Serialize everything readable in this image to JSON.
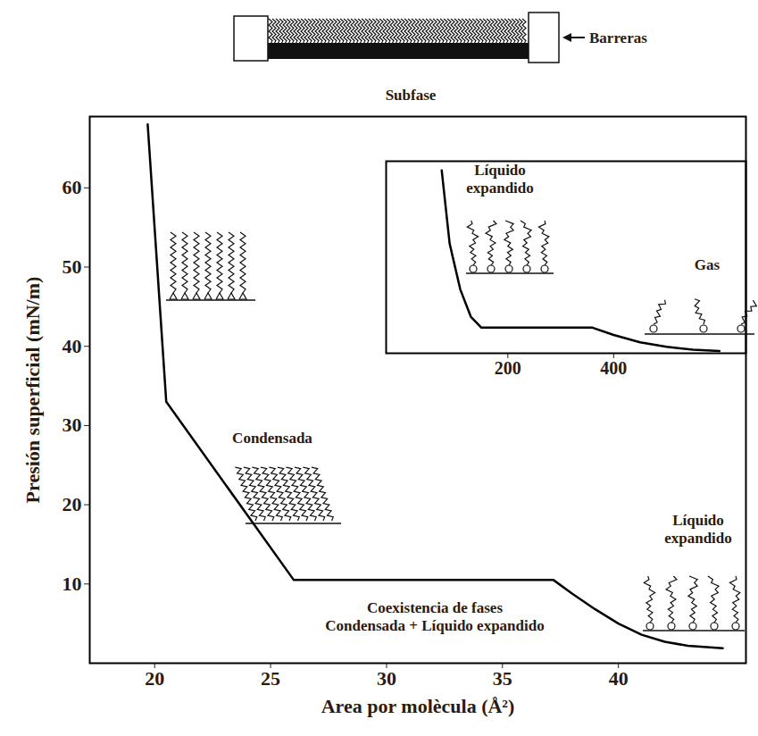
{
  "chart_data": [
    {
      "type": "line",
      "x_label": "Area por molècula (Å²)",
      "y_label": "Presión superficial (mN/m)",
      "x": [
        19.7,
        20.5,
        26,
        37.2,
        38,
        39,
        40,
        41,
        42,
        43,
        44.5
      ],
      "values": [
        68,
        33,
        10.5,
        10.5,
        8.8,
        6.8,
        5.0,
        3.6,
        2.7,
        2.2,
        1.9
      ],
      "color": "#000000",
      "xlim": [
        17.2,
        45.5
      ],
      "ylim": [
        0,
        69
      ],
      "xticks": [
        20,
        25,
        30,
        35,
        40
      ],
      "yticks": [
        10,
        20,
        30,
        40,
        50,
        60
      ],
      "grid": false,
      "annotations": [
        "Condensada",
        "Coexistencia de fases\nCondensada + Líquido expandido",
        "Líquido\nexpandido"
      ]
    },
    {
      "type": "line",
      "x": [
        75,
        90,
        110,
        130,
        150,
        360,
        400,
        450,
        500,
        550,
        600
      ],
      "values": [
        100,
        60,
        35,
        20,
        14,
        14,
        10,
        6,
        3.5,
        2,
        1.2
      ],
      "color": "#000000",
      "xlim": [
        -30,
        650
      ],
      "ylim": [
        0,
        105
      ],
      "xticks": [
        200,
        400
      ],
      "grid": false,
      "tick_labels": "x",
      "annotations": [
        "Líquido\nexpandido",
        "Gas"
      ]
    }
  ],
  "diagram": {
    "barrier_label": "Barreras",
    "subphase_label": "Subfase"
  }
}
